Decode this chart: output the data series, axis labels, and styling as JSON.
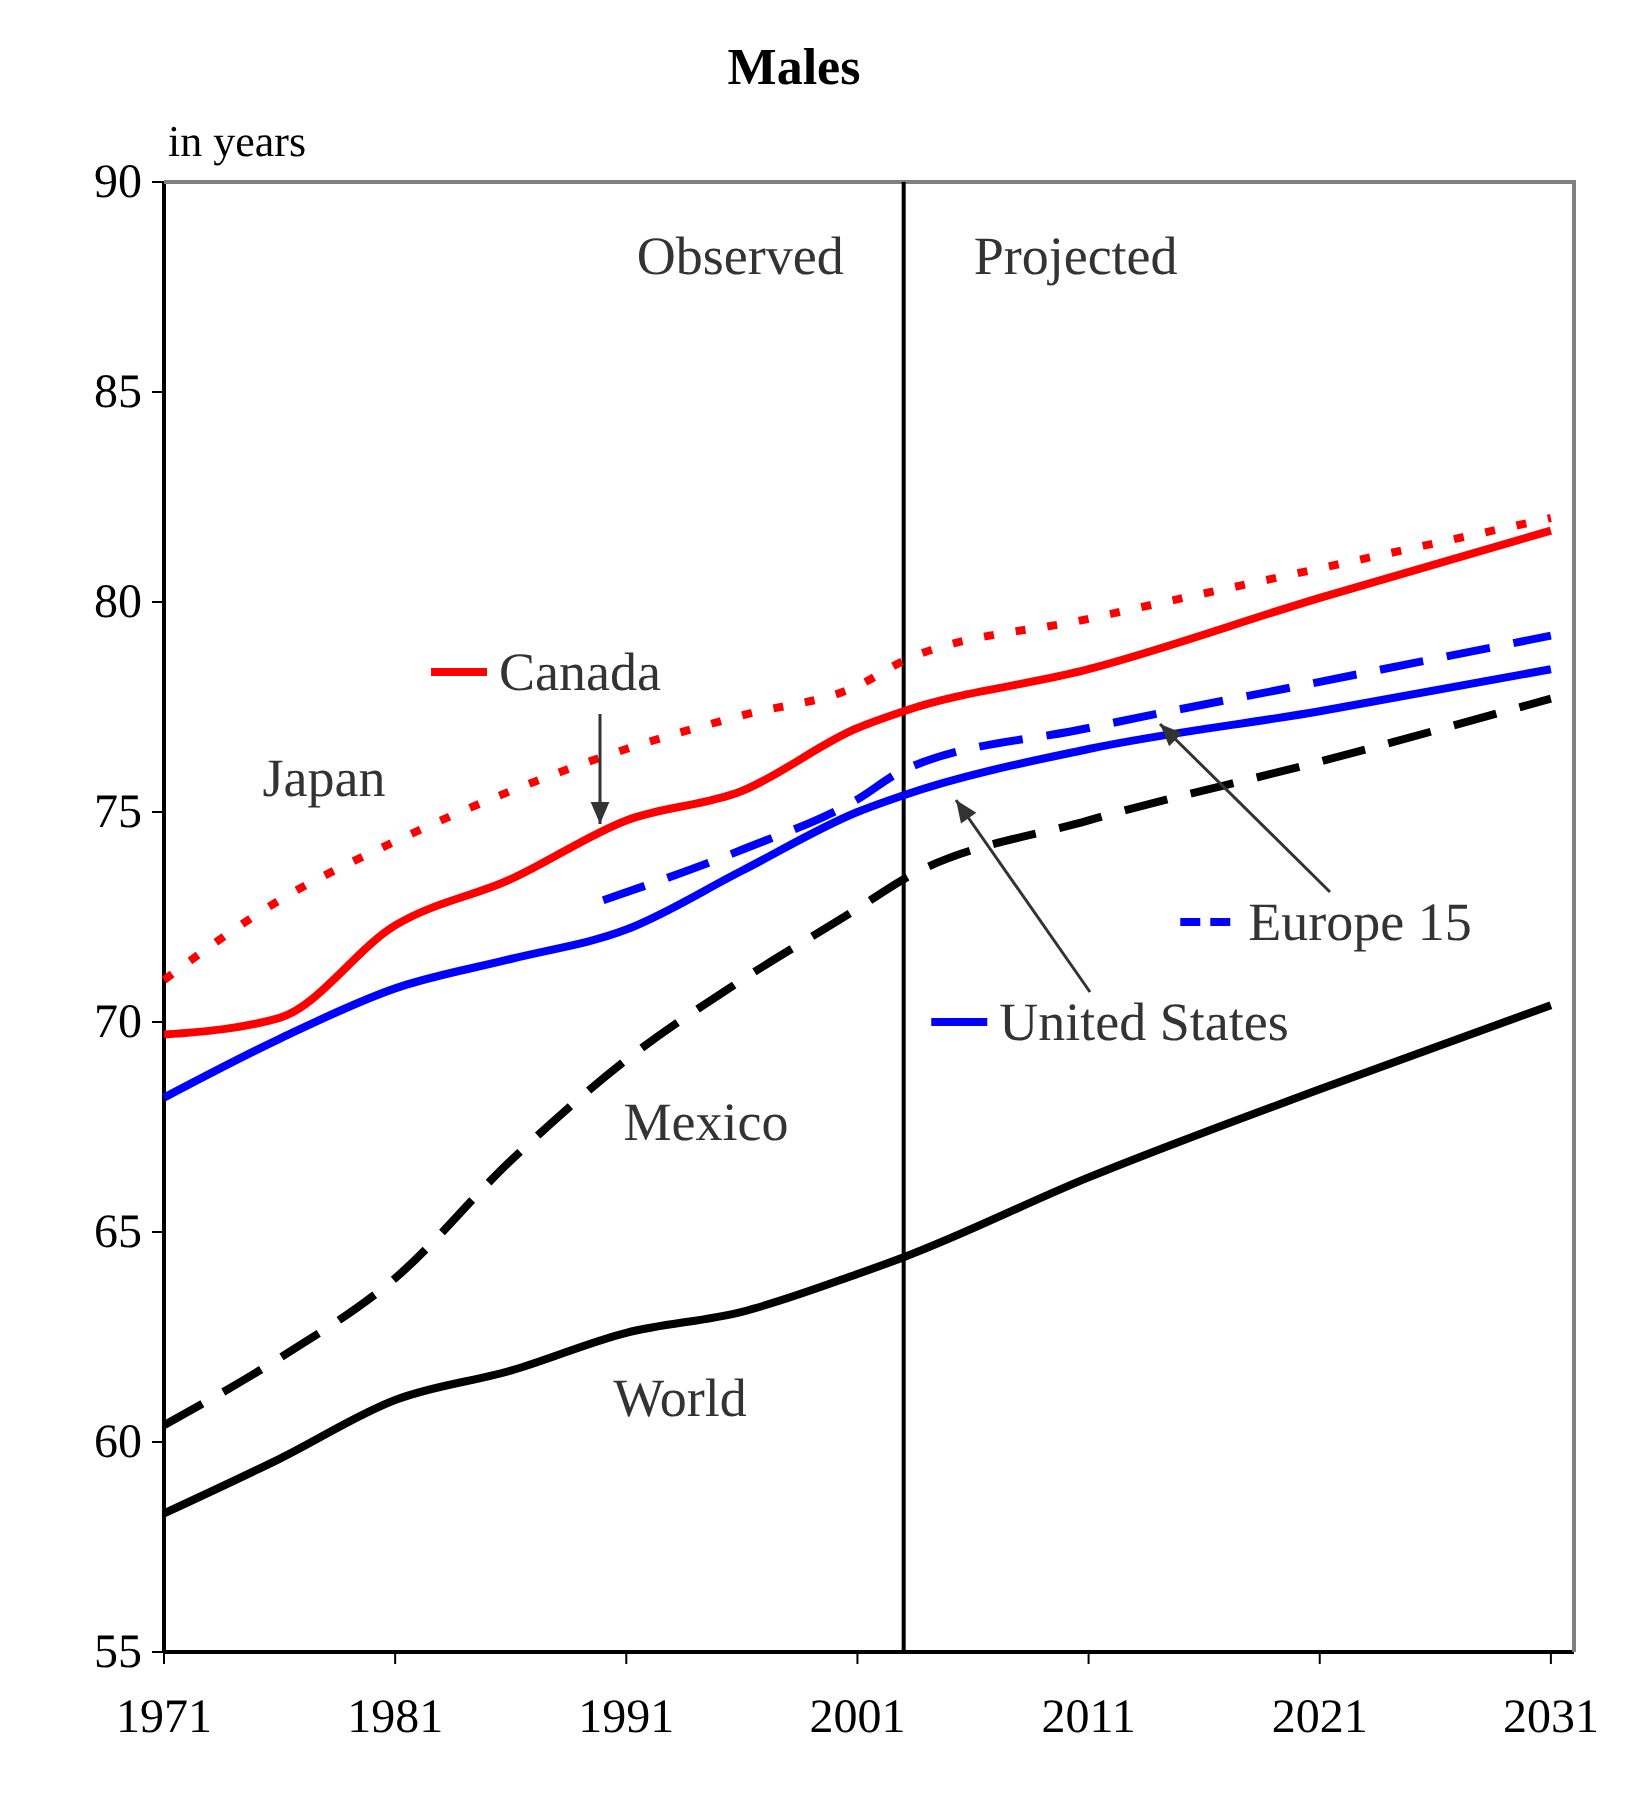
{
  "chart_data": {
    "type": "line",
    "title": "Males",
    "ylabel": "in years",
    "x": [
      1971,
      1976,
      1981,
      1986,
      1991,
      1996,
      2001,
      2003,
      2011,
      2021,
      2031
    ],
    "xlim": [
      1971,
      2032
    ],
    "xticks": [
      1971,
      1981,
      1991,
      2001,
      2011,
      2021,
      2031
    ],
    "ylim": [
      55,
      90
    ],
    "yticks": [
      55,
      60,
      65,
      70,
      75,
      80,
      85,
      90
    ],
    "grid": false,
    "legend": "center",
    "series": [
      {
        "name": "Japan",
        "color": "#ff0000",
        "line_style": "dotted",
        "values": [
          71.0,
          72.9,
          74.3,
          75.5,
          76.5,
          77.3,
          78.0,
          78.6,
          79.6,
          80.8,
          82.0
        ]
      },
      {
        "name": "Canada",
        "color": "#ff0000",
        "line_style": "solid",
        "values": [
          69.7,
          70.1,
          72.3,
          73.4,
          74.8,
          75.5,
          77.0,
          77.4,
          78.4,
          80.1,
          81.7
        ]
      },
      {
        "name": "United States",
        "color": "#0000ff",
        "line_style": "solid",
        "values": [
          68.2,
          69.6,
          70.8,
          71.5,
          72.2,
          73.6,
          75.0,
          75.4,
          76.5,
          77.4,
          78.4
        ]
      },
      {
        "name": "Europe 15",
        "color": "#0000ff",
        "line_style": "dashed",
        "x": [
          1990,
          1996,
          2001,
          2003,
          2011,
          2021,
          2031
        ],
        "values": [
          72.9,
          74.1,
          75.3,
          76.0,
          77.0,
          78.1,
          79.2
        ]
      },
      {
        "name": "Mexico",
        "color": "#000000",
        "line_style": "dashed",
        "values": [
          60.4,
          62.0,
          63.9,
          66.7,
          69.1,
          71.0,
          72.7,
          73.4,
          74.8,
          76.2,
          77.7
        ]
      },
      {
        "name": "World",
        "color": "#000000",
        "line_style": "solid",
        "values": [
          58.3,
          59.6,
          61.0,
          61.7,
          62.6,
          63.1,
          64.0,
          64.4,
          66.3,
          68.4,
          70.4
        ]
      }
    ],
    "ref_lines": [
      {
        "axis": "x",
        "value": 2003,
        "color": "#000000"
      }
    ],
    "annotations": [
      "Observed",
      "Projected"
    ]
  }
}
